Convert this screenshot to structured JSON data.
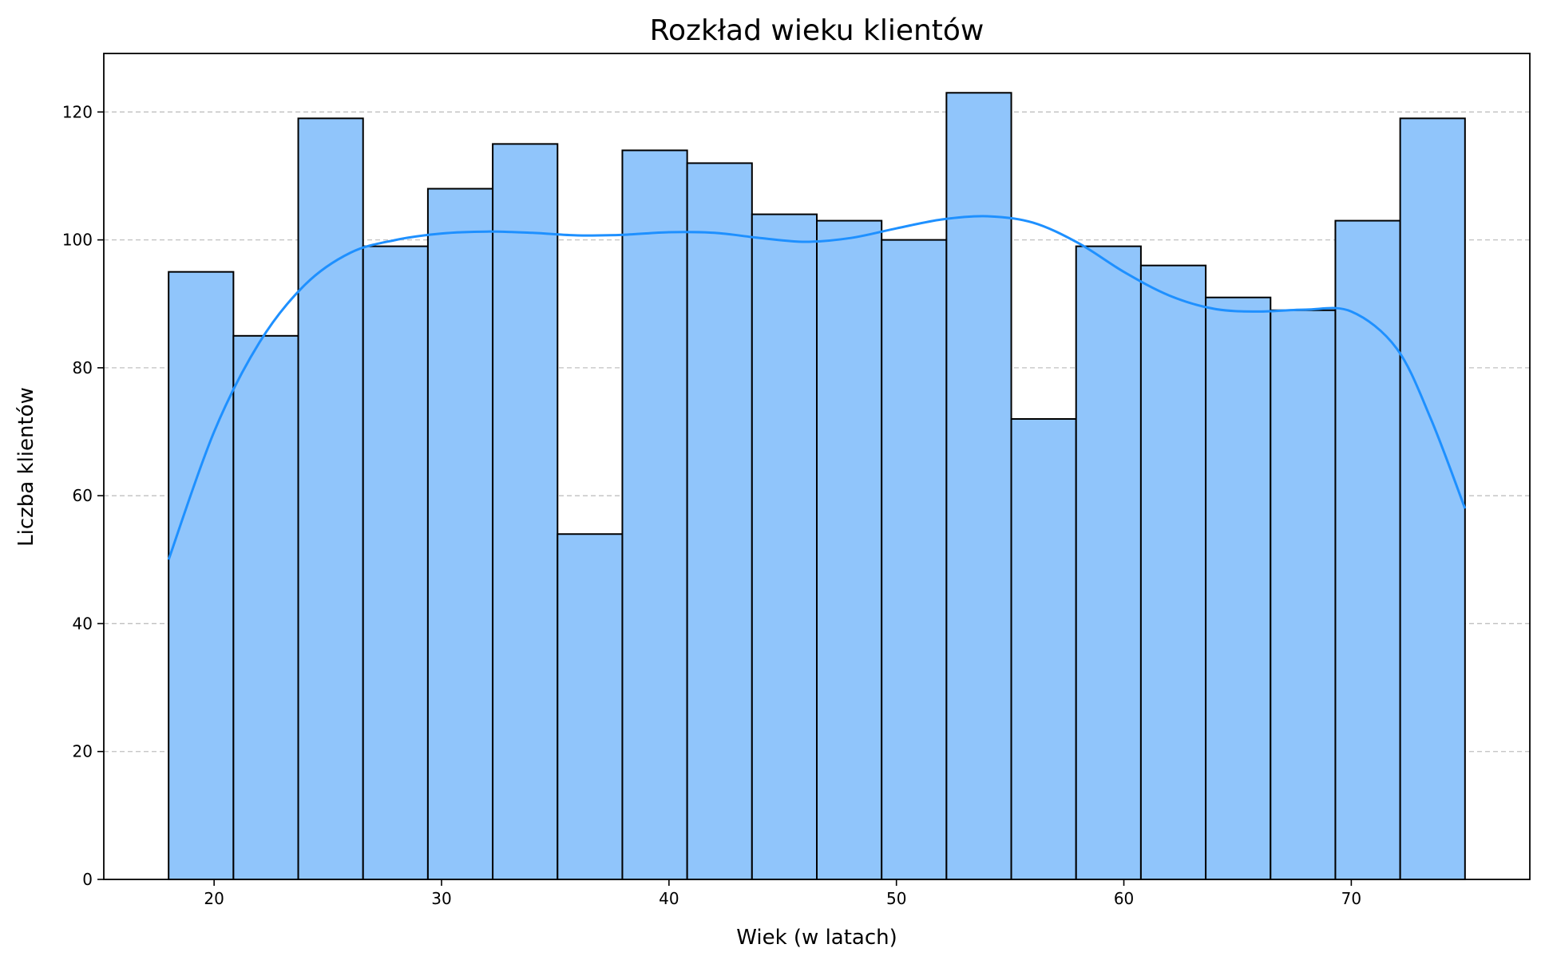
{
  "chart_data": {
    "type": "bar",
    "title": "Rozkład wieku klientów",
    "xlabel": "Wiek (w latach)",
    "ylabel": "Liczba klientów",
    "xlim": [
      15.15,
      77.85
    ],
    "ylim": [
      0,
      129.15
    ],
    "x_ticks": [
      20,
      30,
      40,
      50,
      60,
      70
    ],
    "y_ticks": [
      0,
      20,
      40,
      60,
      80,
      100,
      120
    ],
    "grid": "y-dashed",
    "bin_edges": [
      18.0,
      20.85,
      23.7,
      26.55,
      29.4,
      32.25,
      35.1,
      37.95,
      40.8,
      43.65,
      46.5,
      49.35,
      52.2,
      55.05,
      57.9,
      60.75,
      63.6,
      66.45,
      69.3,
      72.15,
      75.0
    ],
    "values": [
      95,
      85,
      119,
      99,
      108,
      115,
      54,
      114,
      112,
      104,
      103,
      100,
      123,
      72,
      99,
      96,
      91,
      89,
      103,
      119
    ],
    "kde": {
      "x": [
        18,
        20,
        22,
        24,
        26,
        28,
        30,
        32,
        34,
        36,
        38,
        40,
        42,
        44,
        46,
        48,
        50,
        52,
        54,
        56,
        58,
        60,
        62,
        64,
        66,
        68,
        70,
        72,
        73.5,
        75
      ],
      "y": [
        50,
        70,
        84,
        93,
        98,
        100,
        101,
        101.3,
        101.1,
        100.7,
        100.8,
        101.2,
        101.1,
        100.3,
        99.7,
        100.3,
        101.8,
        103.2,
        103.7,
        102.7,
        99.5,
        95,
        91.3,
        89.2,
        88.8,
        89.1,
        88.8,
        83,
        72,
        58
      ]
    },
    "colors": {
      "bar_fill": "#90c5fb",
      "bar_edge": "#000000",
      "kde_line": "#1e90ff",
      "grid": "#c0c0c0"
    }
  }
}
